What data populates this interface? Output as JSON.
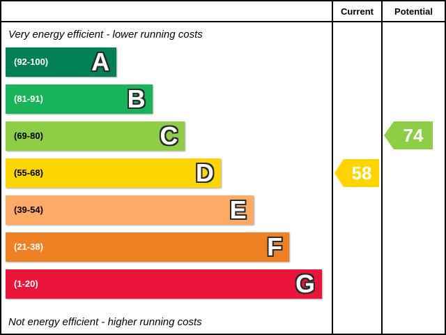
{
  "header": {
    "current": "Current",
    "potential": "Potential"
  },
  "captions": {
    "top": "Very energy efficient - lower running costs",
    "bottom": "Not energy efficient - higher running costs"
  },
  "chart_data": {
    "type": "bar",
    "subtype": "epc-energy-efficiency-rating",
    "title": "Energy efficiency rating chart",
    "bands": [
      {
        "letter": "A",
        "range": "(92-100)",
        "color": "#008054",
        "width_pct": 34,
        "range_text_color": "#ffffff"
      },
      {
        "letter": "B",
        "range": "(81-91)",
        "color": "#19b459",
        "width_pct": 45,
        "range_text_color": "#ffffff"
      },
      {
        "letter": "C",
        "range": "(69-80)",
        "color": "#8dce46",
        "width_pct": 55,
        "range_text_color": "#000000"
      },
      {
        "letter": "D",
        "range": "(55-68)",
        "color": "#ffd500",
        "width_pct": 66,
        "range_text_color": "#000000"
      },
      {
        "letter": "E",
        "range": "(39-54)",
        "color": "#fcaa65",
        "width_pct": 76,
        "range_text_color": "#000000"
      },
      {
        "letter": "F",
        "range": "(21-38)",
        "color": "#ef8023",
        "width_pct": 87,
        "range_text_color": "#ffffff"
      },
      {
        "letter": "G",
        "range": "(1-20)",
        "color": "#e9153b",
        "width_pct": 97,
        "range_text_color": "#ffffff"
      }
    ],
    "current": {
      "value": "58",
      "band": "D",
      "color": "#ffd500"
    },
    "potential": {
      "value": "74",
      "band": "C",
      "color": "#8dce46"
    }
  }
}
